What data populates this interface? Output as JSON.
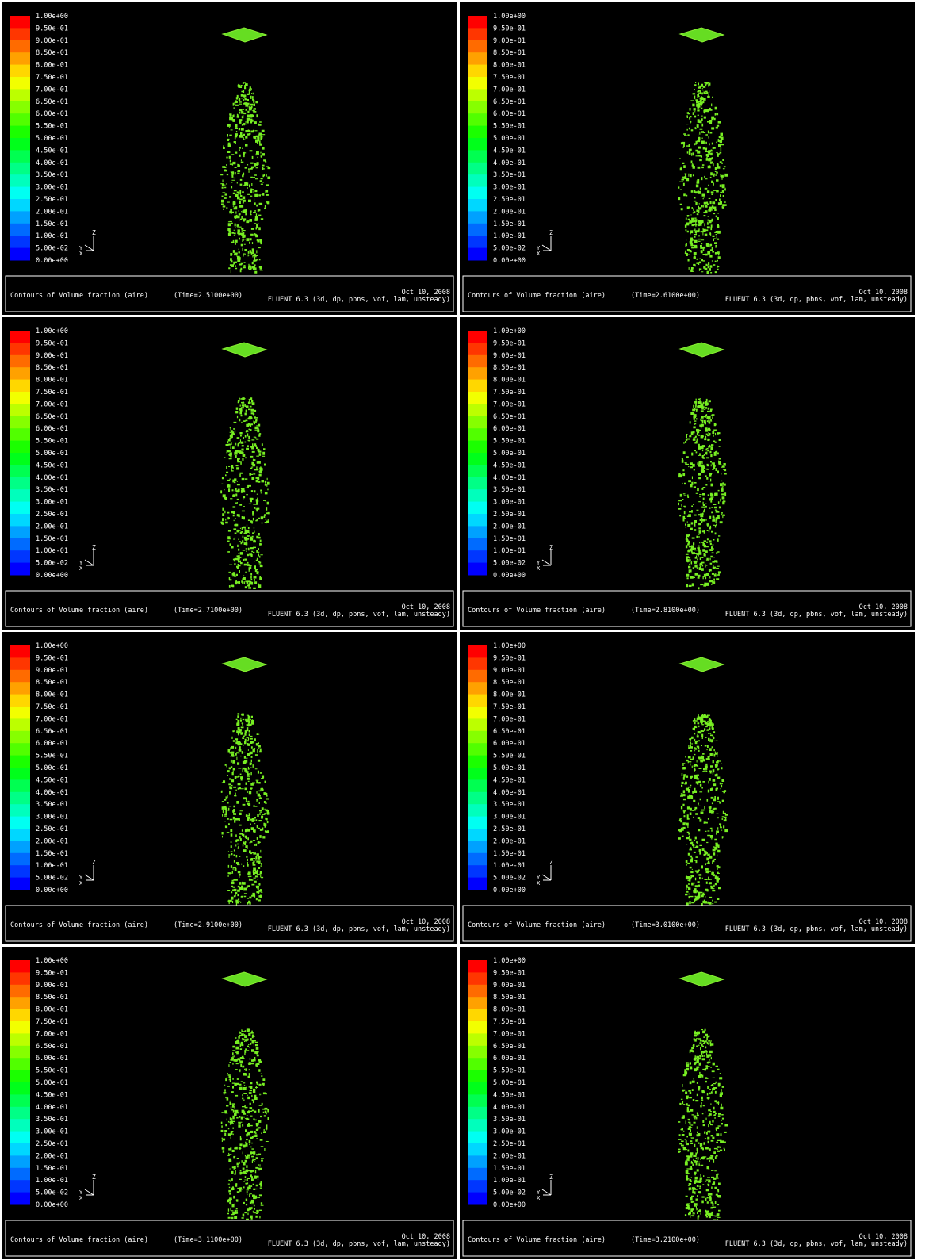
{
  "legend_labels": [
    "1.00e+00",
    "9.50e-01",
    "9.00e-01",
    "8.50e-01",
    "8.00e-01",
    "7.50e-01",
    "7.00e-01",
    "6.50e-01",
    "6.00e-01",
    "5.50e-01",
    "5.00e-01",
    "4.50e-01",
    "4.00e-01",
    "3.50e-01",
    "3.00e-01",
    "2.50e-01",
    "2.00e-01",
    "1.50e-01",
    "1.00e-01",
    "5.00e-02",
    "0.00e+00"
  ],
  "axis_labels": [
    "Z",
    "Y",
    "X"
  ],
  "panels": [
    {
      "caption": "Contours of Volume fraction (aire)",
      "time": "(Time=2.5100e+00)",
      "date": "Oct 10, 2008",
      "solver": "FLUENT 6.3 (3d, dp, pbns, vof, lam, unsteady)"
    },
    {
      "caption": "Contours of Volume fraction (aire)",
      "time": "(Time=2.6100e+00)",
      "date": "Oct 10, 2008",
      "solver": "FLUENT 6.3 (3d, dp, pbns, vof, lam, unsteady)"
    },
    {
      "caption": "Contours of Volume fraction (aire)",
      "time": "(Time=2.7100e+00)",
      "date": "Oct 10, 2008",
      "solver": "FLUENT 6.3 (3d, dp, pbns, vof, lam, unsteady)"
    },
    {
      "caption": "Contours of Volume fraction (aire)",
      "time": "(Time=2.8100e+00)",
      "date": "Oct 10, 2008",
      "solver": "FLUENT 6.3 (3d, dp, pbns, vof, lam, unsteady)"
    },
    {
      "caption": "Contours of Volume fraction (aire)",
      "time": "(Time=2.9100e+00)",
      "date": "Oct 10, 2008",
      "solver": "FLUENT 6.3 (3d, dp, pbns, vof, lam, unsteady)"
    },
    {
      "caption": "Contours of Volume fraction (aire)",
      "time": "(Time=3.0100e+00)",
      "date": "Oct 10, 2008",
      "solver": "FLUENT 6.3 (3d, dp, pbns, vof, lam, unsteady)"
    },
    {
      "caption": "Contours of Volume fraction (aire)",
      "time": "(Time=3.1100e+00)",
      "date": "Oct 10, 2008",
      "solver": "FLUENT 6.3 (3d, dp, pbns, vof, lam, unsteady)"
    },
    {
      "caption": "Contours of Volume fraction (aire)",
      "time": "(Time=3.2100e+00)",
      "date": "Oct 10, 2008",
      "solver": "FLUENT 6.3 (3d, dp, pbns, vof, lam, unsteady)"
    }
  ]
}
